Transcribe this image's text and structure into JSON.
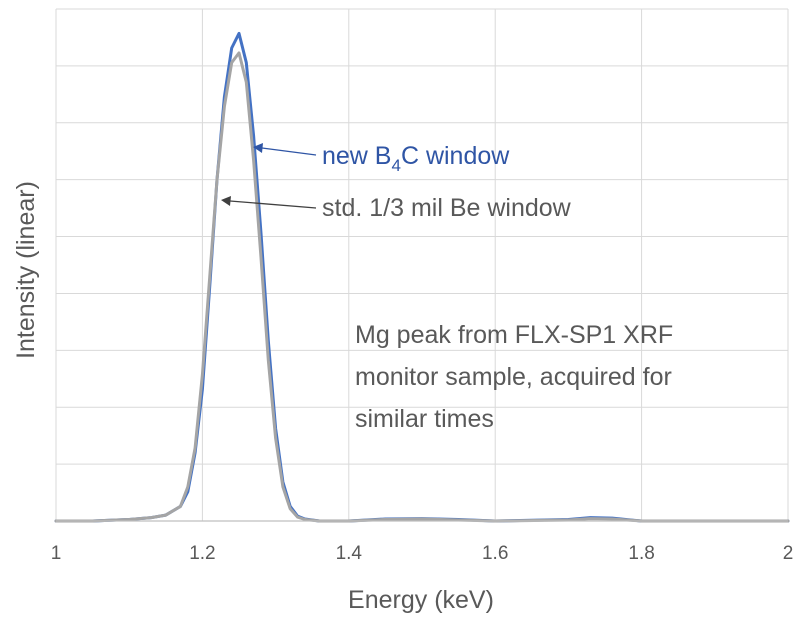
{
  "chart_data": {
    "type": "line",
    "xlabel": "Energy (keV)",
    "ylabel": "Intensity (linear)",
    "xlim": [
      1,
      2
    ],
    "ylim": [
      0,
      1.05
    ],
    "x_ticks": [
      "1",
      "1.2",
      "1.4",
      "1.6",
      "1.8",
      "2"
    ],
    "y_tick_labels_shown": false,
    "grid": true,
    "series": [
      {
        "name": "new B4C window",
        "color": "#4472c4",
        "x": [
          1.0,
          1.05,
          1.1,
          1.13,
          1.15,
          1.17,
          1.18,
          1.19,
          1.2,
          1.21,
          1.22,
          1.23,
          1.24,
          1.25,
          1.26,
          1.27,
          1.28,
          1.29,
          1.3,
          1.31,
          1.32,
          1.33,
          1.34,
          1.36,
          1.4,
          1.45,
          1.5,
          1.55,
          1.6,
          1.7,
          1.73,
          1.76,
          1.8,
          1.9,
          2.0
        ],
        "y": [
          0.0,
          0.0,
          0.003,
          0.007,
          0.012,
          0.03,
          0.06,
          0.14,
          0.27,
          0.48,
          0.7,
          0.87,
          0.97,
          1.0,
          0.94,
          0.79,
          0.59,
          0.37,
          0.19,
          0.08,
          0.03,
          0.01,
          0.004,
          0.0,
          0.0,
          0.004,
          0.005,
          0.003,
          0.0,
          0.003,
          0.007,
          0.006,
          0.0,
          0.0,
          0.0
        ]
      },
      {
        "name": "std. 1/3 mil Be window",
        "color": "#a5a5a5",
        "x": [
          1.0,
          1.05,
          1.1,
          1.13,
          1.15,
          1.17,
          1.18,
          1.19,
          1.2,
          1.21,
          1.22,
          1.23,
          1.24,
          1.25,
          1.26,
          1.27,
          1.28,
          1.29,
          1.3,
          1.31,
          1.32,
          1.33,
          1.34,
          1.36,
          1.4,
          1.45,
          1.5,
          1.55,
          1.6,
          1.7,
          1.73,
          1.76,
          1.8,
          1.9,
          2.0
        ],
        "y": [
          0.0,
          0.0,
          0.003,
          0.007,
          0.012,
          0.03,
          0.07,
          0.15,
          0.3,
          0.5,
          0.7,
          0.85,
          0.94,
          0.96,
          0.9,
          0.74,
          0.54,
          0.33,
          0.17,
          0.07,
          0.025,
          0.008,
          0.003,
          0.0,
          0.0,
          0.003,
          0.004,
          0.002,
          0.0,
          0.002,
          0.005,
          0.004,
          0.0,
          0.0,
          0.0
        ]
      }
    ],
    "annotations": [
      {
        "series": 0,
        "label_prefix": "new B",
        "label_subscript": "4",
        "label_suffix": "C window",
        "color": "#2f55a5"
      },
      {
        "series": 1,
        "label": "std. 1/3 mil Be window",
        "color": "#595959"
      },
      {
        "label_lines": [
          "Mg peak from FLX-SP1 XRF",
          "monitor sample, acquired for",
          "similar times"
        ],
        "color": "#595959"
      }
    ]
  }
}
